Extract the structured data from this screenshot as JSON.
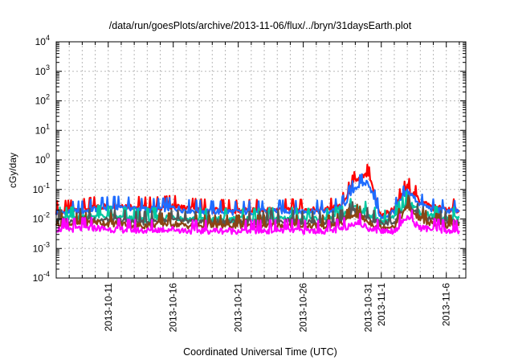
{
  "chart_data": {
    "type": "line",
    "title": "/data/run/goesPlots/archive/2013-11-06/flux/../bryn/31daysEarth.plot",
    "xlabel": "Coordinated Universal Time (UTC)",
    "ylabel": "cGy/day",
    "yscale": "log",
    "ylim": [
      0.0001,
      10000
    ],
    "xlim": [
      "2013-10-07",
      "2013-11-07T12:00"
    ],
    "grid": true,
    "y_ticks": [
      {
        "value": 0.0001,
        "base": "10",
        "exp": "-4"
      },
      {
        "value": 0.001,
        "base": "10",
        "exp": "-3"
      },
      {
        "value": 0.01,
        "base": "10",
        "exp": "-2"
      },
      {
        "value": 0.1,
        "base": "10",
        "exp": "-1"
      },
      {
        "value": 1,
        "base": "10",
        "exp": "0"
      },
      {
        "value": 10,
        "base": "10",
        "exp": "1"
      },
      {
        "value": 100,
        "base": "10",
        "exp": "2"
      },
      {
        "value": 1000,
        "base": "10",
        "exp": "3"
      },
      {
        "value": 10000,
        "base": "10",
        "exp": "4"
      }
    ],
    "x_ticks": [
      {
        "date": "2013-10-11",
        "label": "2013-10-11"
      },
      {
        "date": "2013-10-16",
        "label": "2013-10-16"
      },
      {
        "date": "2013-10-21",
        "label": "2013-10-21"
      },
      {
        "date": "2013-10-26",
        "label": "2013-10-26"
      },
      {
        "date": "2013-10-31",
        "label": "2013-10-31"
      },
      {
        "date": "2013-11-01",
        "label": "2013-11-1"
      },
      {
        "date": "2013-11-06",
        "label": "2013-11-6"
      }
    ],
    "x_minor_grid_dates": [
      "2013-10-08",
      "2013-10-09",
      "2013-10-10",
      "2013-10-12",
      "2013-10-13",
      "2013-10-14",
      "2013-10-15",
      "2013-10-17",
      "2013-10-18",
      "2013-10-19",
      "2013-10-20",
      "2013-10-22",
      "2013-10-23",
      "2013-10-24",
      "2013-10-25",
      "2013-10-27",
      "2013-10-28",
      "2013-10-29",
      "2013-10-30",
      "2013-11-02",
      "2013-11-03",
      "2013-11-04",
      "2013-11-05",
      "2013-11-07"
    ],
    "x": [
      "2013-10-07",
      "2013-10-08",
      "2013-10-09",
      "2013-10-10",
      "2013-10-11",
      "2013-10-12",
      "2013-10-13",
      "2013-10-14",
      "2013-10-15",
      "2013-10-16",
      "2013-10-17",
      "2013-10-18",
      "2013-10-19",
      "2013-10-20",
      "2013-10-21",
      "2013-10-22",
      "2013-10-23",
      "2013-10-24",
      "2013-10-25",
      "2013-10-26",
      "2013-10-27",
      "2013-10-28",
      "2013-10-29",
      "2013-10-30",
      "2013-10-31",
      "2013-11-01",
      "2013-11-02",
      "2013-11-03",
      "2013-11-04",
      "2013-11-05",
      "2013-11-06",
      "2013-11-07"
    ],
    "series": [
      {
        "color": "#ff0000",
        "values": [
          0.018,
          0.019,
          0.021,
          0.025,
          0.028,
          0.03,
          0.026,
          0.024,
          0.025,
          0.028,
          0.023,
          0.021,
          0.02,
          0.02,
          0.019,
          0.02,
          0.02,
          0.021,
          0.021,
          0.02,
          0.022,
          0.021,
          0.03,
          0.2,
          0.32,
          0.012,
          0.022,
          0.12,
          0.04,
          0.025,
          0.022,
          0.02
        ]
      },
      {
        "color": "#1e6cff",
        "values": [
          0.016,
          0.017,
          0.018,
          0.022,
          0.025,
          0.026,
          0.023,
          0.021,
          0.022,
          0.024,
          0.02,
          0.019,
          0.018,
          0.018,
          0.017,
          0.018,
          0.018,
          0.019,
          0.019,
          0.018,
          0.019,
          0.018,
          0.025,
          0.12,
          0.18,
          0.01,
          0.019,
          0.09,
          0.032,
          0.021,
          0.019,
          0.018
        ]
      },
      {
        "color": "#00c8a0",
        "values": [
          0.011,
          0.011,
          0.012,
          0.013,
          0.012,
          0.011,
          0.01,
          0.01,
          0.011,
          0.012,
          0.01,
          0.01,
          0.01,
          0.01,
          0.01,
          0.01,
          0.01,
          0.011,
          0.011,
          0.01,
          0.01,
          0.01,
          0.012,
          0.03,
          0.015,
          0.008,
          0.011,
          0.04,
          0.018,
          0.012,
          0.011,
          0.011
        ]
      },
      {
        "color": "#555555",
        "values": [
          0.009,
          0.009,
          0.01,
          0.01,
          0.009,
          0.009,
          0.008,
          0.008,
          0.009,
          0.009,
          0.008,
          0.008,
          0.008,
          0.008,
          0.008,
          0.008,
          0.008,
          0.009,
          0.009,
          0.008,
          0.008,
          0.008,
          0.009,
          0.02,
          0.01,
          0.007,
          0.008,
          0.03,
          0.012,
          0.009,
          0.008,
          0.008
        ]
      },
      {
        "color": "#8b4513",
        "values": [
          0.007,
          0.007,
          0.007,
          0.008,
          0.007,
          0.007,
          0.006,
          0.006,
          0.007,
          0.007,
          0.006,
          0.006,
          0.006,
          0.006,
          0.006,
          0.006,
          0.006,
          0.006,
          0.006,
          0.006,
          0.006,
          0.006,
          0.007,
          0.015,
          0.008,
          0.005,
          0.006,
          0.025,
          0.01,
          0.007,
          0.006,
          0.006
        ]
      },
      {
        "color": "#ff00ff",
        "values": [
          0.0045,
          0.0045,
          0.0048,
          0.005,
          0.0045,
          0.0044,
          0.0042,
          0.004,
          0.0044,
          0.0045,
          0.004,
          0.004,
          0.004,
          0.004,
          0.004,
          0.004,
          0.004,
          0.0042,
          0.0042,
          0.004,
          0.004,
          0.004,
          0.0045,
          0.008,
          0.005,
          0.004,
          0.004,
          0.012,
          0.005,
          0.0045,
          0.004,
          0.004
        ]
      }
    ]
  }
}
